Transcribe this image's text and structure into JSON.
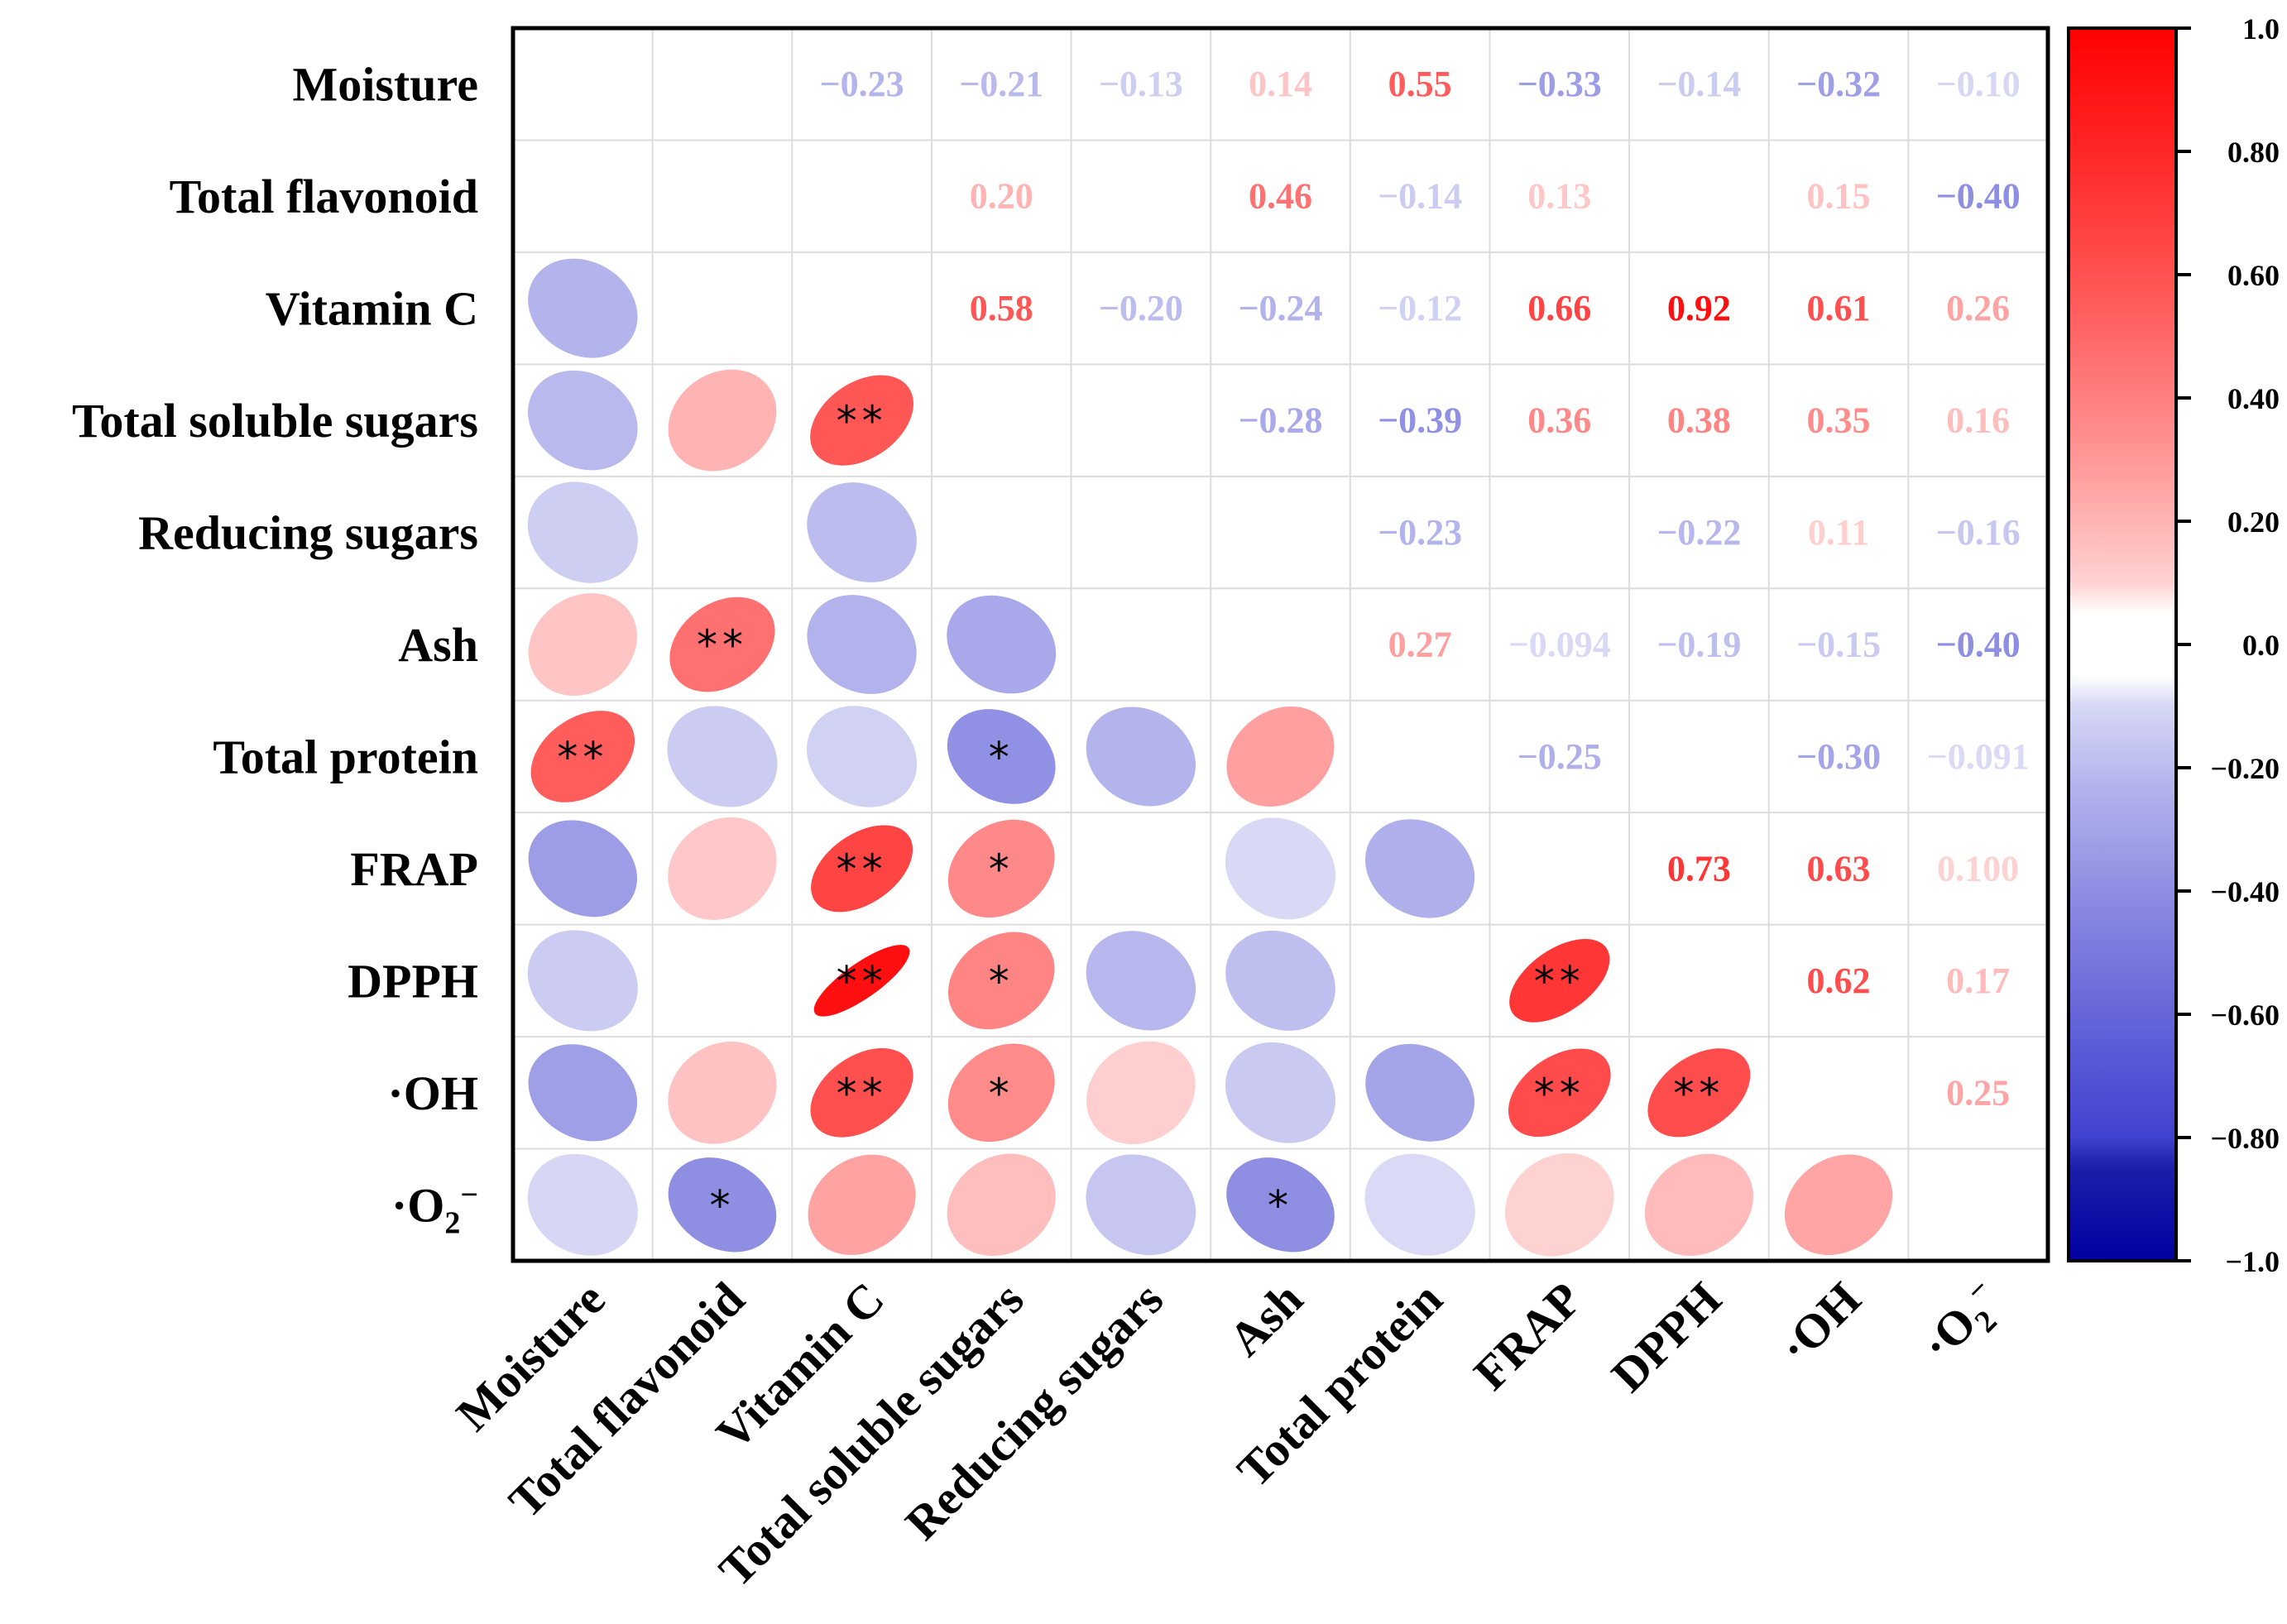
{
  "chart_data": {
    "type": "heatmap",
    "variables": [
      {
        "label": "Moisture",
        "sub": ""
      },
      {
        "label": "Total flavonoid",
        "sub": ""
      },
      {
        "label": "Vitamin C",
        "sub": ""
      },
      {
        "label": "Total soluble sugars",
        "sub": ""
      },
      {
        "label": "Reducing sugars",
        "sub": ""
      },
      {
        "label": "Ash",
        "sub": ""
      },
      {
        "label": "Total protein",
        "sub": ""
      },
      {
        "label": "FRAP",
        "sub": ""
      },
      {
        "label": "DPPH",
        "sub": ""
      },
      {
        "label": "·OH",
        "sub": ""
      },
      {
        "label": "·O",
        "sub": "2",
        "sup": "−"
      }
    ],
    "upper_labels": [
      {
        "row": 0,
        "col": 2,
        "text": "−0.23",
        "value": -0.23
      },
      {
        "row": 0,
        "col": 3,
        "text": "−0.21",
        "value": -0.21
      },
      {
        "row": 0,
        "col": 4,
        "text": "−0.13",
        "value": -0.13
      },
      {
        "row": 0,
        "col": 5,
        "text": "0.14",
        "value": 0.14
      },
      {
        "row": 0,
        "col": 6,
        "text": "0.55",
        "value": 0.55
      },
      {
        "row": 0,
        "col": 7,
        "text": "−0.33",
        "value": -0.33
      },
      {
        "row": 0,
        "col": 8,
        "text": "−0.14",
        "value": -0.14
      },
      {
        "row": 0,
        "col": 9,
        "text": "−0.32",
        "value": -0.32
      },
      {
        "row": 0,
        "col": 10,
        "text": "−0.10",
        "value": -0.1
      },
      {
        "row": 1,
        "col": 3,
        "text": "0.20",
        "value": 0.2
      },
      {
        "row": 1,
        "col": 5,
        "text": "0.46",
        "value": 0.46
      },
      {
        "row": 1,
        "col": 6,
        "text": "−0.14",
        "value": -0.14
      },
      {
        "row": 1,
        "col": 7,
        "text": "0.13",
        "value": 0.13
      },
      {
        "row": 1,
        "col": 9,
        "text": "0.15",
        "value": 0.15
      },
      {
        "row": 1,
        "col": 10,
        "text": "−0.40",
        "value": -0.4
      },
      {
        "row": 2,
        "col": 3,
        "text": "0.58",
        "value": 0.58
      },
      {
        "row": 2,
        "col": 4,
        "text": "−0.20",
        "value": -0.2
      },
      {
        "row": 2,
        "col": 5,
        "text": "−0.24",
        "value": -0.24
      },
      {
        "row": 2,
        "col": 6,
        "text": "−0.12",
        "value": -0.12
      },
      {
        "row": 2,
        "col": 7,
        "text": "0.66",
        "value": 0.66
      },
      {
        "row": 2,
        "col": 8,
        "text": "0.92",
        "value": 0.92
      },
      {
        "row": 2,
        "col": 9,
        "text": "0.61",
        "value": 0.61
      },
      {
        "row": 2,
        "col": 10,
        "text": "0.26",
        "value": 0.26
      },
      {
        "row": 3,
        "col": 5,
        "text": "−0.28",
        "value": -0.28
      },
      {
        "row": 3,
        "col": 6,
        "text": "−0.39",
        "value": -0.39
      },
      {
        "row": 3,
        "col": 7,
        "text": "0.36",
        "value": 0.36
      },
      {
        "row": 3,
        "col": 8,
        "text": "0.38",
        "value": 0.38
      },
      {
        "row": 3,
        "col": 9,
        "text": "0.35",
        "value": 0.35
      },
      {
        "row": 3,
        "col": 10,
        "text": "0.16",
        "value": 0.16
      },
      {
        "row": 4,
        "col": 6,
        "text": "−0.23",
        "value": -0.23
      },
      {
        "row": 4,
        "col": 8,
        "text": "−0.22",
        "value": -0.22
      },
      {
        "row": 4,
        "col": 9,
        "text": "0.11",
        "value": 0.11
      },
      {
        "row": 4,
        "col": 10,
        "text": "−0.16",
        "value": -0.16
      },
      {
        "row": 5,
        "col": 6,
        "text": "0.27",
        "value": 0.27
      },
      {
        "row": 5,
        "col": 7,
        "text": "−0.094",
        "value": -0.094
      },
      {
        "row": 5,
        "col": 8,
        "text": "−0.19",
        "value": -0.19
      },
      {
        "row": 5,
        "col": 9,
        "text": "−0.15",
        "value": -0.15
      },
      {
        "row": 5,
        "col": 10,
        "text": "−0.40",
        "value": -0.4
      },
      {
        "row": 6,
        "col": 7,
        "text": "−0.25",
        "value": -0.25
      },
      {
        "row": 6,
        "col": 9,
        "text": "−0.30",
        "value": -0.3
      },
      {
        "row": 6,
        "col": 10,
        "text": "−0.091",
        "value": -0.091
      },
      {
        "row": 7,
        "col": 8,
        "text": "0.73",
        "value": 0.73
      },
      {
        "row": 7,
        "col": 9,
        "text": "0.63",
        "value": 0.63
      },
      {
        "row": 7,
        "col": 10,
        "text": "0.100",
        "value": 0.1
      },
      {
        "row": 8,
        "col": 9,
        "text": "0.62",
        "value": 0.62
      },
      {
        "row": 8,
        "col": 10,
        "text": "0.17",
        "value": 0.17
      },
      {
        "row": 9,
        "col": 10,
        "text": "0.25",
        "value": 0.25
      }
    ],
    "lower_ellipses": [
      {
        "row": 2,
        "col": 0,
        "value": -0.23,
        "sig": ""
      },
      {
        "row": 3,
        "col": 0,
        "value": -0.21,
        "sig": ""
      },
      {
        "row": 3,
        "col": 1,
        "value": 0.2,
        "sig": ""
      },
      {
        "row": 3,
        "col": 2,
        "value": 0.58,
        "sig": "**"
      },
      {
        "row": 4,
        "col": 0,
        "value": -0.13,
        "sig": ""
      },
      {
        "row": 4,
        "col": 2,
        "value": -0.2,
        "sig": ""
      },
      {
        "row": 5,
        "col": 0,
        "value": 0.14,
        "sig": ""
      },
      {
        "row": 5,
        "col": 1,
        "value": 0.46,
        "sig": "**"
      },
      {
        "row": 5,
        "col": 2,
        "value": -0.24,
        "sig": ""
      },
      {
        "row": 5,
        "col": 3,
        "value": -0.28,
        "sig": ""
      },
      {
        "row": 6,
        "col": 0,
        "value": 0.55,
        "sig": "**"
      },
      {
        "row": 6,
        "col": 1,
        "value": -0.14,
        "sig": ""
      },
      {
        "row": 6,
        "col": 2,
        "value": -0.12,
        "sig": ""
      },
      {
        "row": 6,
        "col": 3,
        "value": -0.39,
        "sig": "*"
      },
      {
        "row": 6,
        "col": 4,
        "value": -0.23,
        "sig": ""
      },
      {
        "row": 6,
        "col": 5,
        "value": 0.27,
        "sig": ""
      },
      {
        "row": 7,
        "col": 0,
        "value": -0.33,
        "sig": ""
      },
      {
        "row": 7,
        "col": 1,
        "value": 0.13,
        "sig": ""
      },
      {
        "row": 7,
        "col": 2,
        "value": 0.66,
        "sig": "**"
      },
      {
        "row": 7,
        "col": 3,
        "value": 0.36,
        "sig": "*"
      },
      {
        "row": 7,
        "col": 5,
        "value": -0.094,
        "sig": ""
      },
      {
        "row": 7,
        "col": 6,
        "value": -0.25,
        "sig": ""
      },
      {
        "row": 8,
        "col": 0,
        "value": -0.14,
        "sig": ""
      },
      {
        "row": 8,
        "col": 2,
        "value": 0.92,
        "sig": "**"
      },
      {
        "row": 8,
        "col": 3,
        "value": 0.38,
        "sig": "*"
      },
      {
        "row": 8,
        "col": 4,
        "value": -0.22,
        "sig": ""
      },
      {
        "row": 8,
        "col": 5,
        "value": -0.19,
        "sig": ""
      },
      {
        "row": 8,
        "col": 7,
        "value": 0.73,
        "sig": "**"
      },
      {
        "row": 9,
        "col": 0,
        "value": -0.32,
        "sig": ""
      },
      {
        "row": 9,
        "col": 1,
        "value": 0.15,
        "sig": ""
      },
      {
        "row": 9,
        "col": 2,
        "value": 0.61,
        "sig": "**"
      },
      {
        "row": 9,
        "col": 3,
        "value": 0.35,
        "sig": "*"
      },
      {
        "row": 9,
        "col": 4,
        "value": 0.11,
        "sig": ""
      },
      {
        "row": 9,
        "col": 5,
        "value": -0.15,
        "sig": ""
      },
      {
        "row": 9,
        "col": 6,
        "value": -0.3,
        "sig": ""
      },
      {
        "row": 9,
        "col": 7,
        "value": 0.63,
        "sig": "**"
      },
      {
        "row": 9,
        "col": 8,
        "value": 0.62,
        "sig": "**"
      },
      {
        "row": 10,
        "col": 0,
        "value": -0.1,
        "sig": ""
      },
      {
        "row": 10,
        "col": 1,
        "value": -0.4,
        "sig": "*"
      },
      {
        "row": 10,
        "col": 2,
        "value": 0.26,
        "sig": ""
      },
      {
        "row": 10,
        "col": 3,
        "value": 0.16,
        "sig": ""
      },
      {
        "row": 10,
        "col": 4,
        "value": -0.16,
        "sig": ""
      },
      {
        "row": 10,
        "col": 5,
        "value": -0.4,
        "sig": "*"
      },
      {
        "row": 10,
        "col": 6,
        "value": -0.091,
        "sig": ""
      },
      {
        "row": 10,
        "col": 7,
        "value": 0.1,
        "sig": ""
      },
      {
        "row": 10,
        "col": 8,
        "value": 0.17,
        "sig": ""
      },
      {
        "row": 10,
        "col": 9,
        "value": 0.25,
        "sig": ""
      }
    ],
    "colorbar": {
      "range": [
        -1.0,
        1.0
      ],
      "ticks": [
        "1.0",
        "0.80",
        "0.60",
        "0.40",
        "0.20",
        "0.0",
        "−0.20",
        "−0.40",
        "−0.60",
        "−0.80",
        "−1.0"
      ],
      "low_color": "#0000a0",
      "mid_color": "#ffffff",
      "high_color": "#ff0000",
      "neutral_band": [
        -0.06,
        0.08
      ]
    },
    "grid": true,
    "legend_position": "right"
  }
}
